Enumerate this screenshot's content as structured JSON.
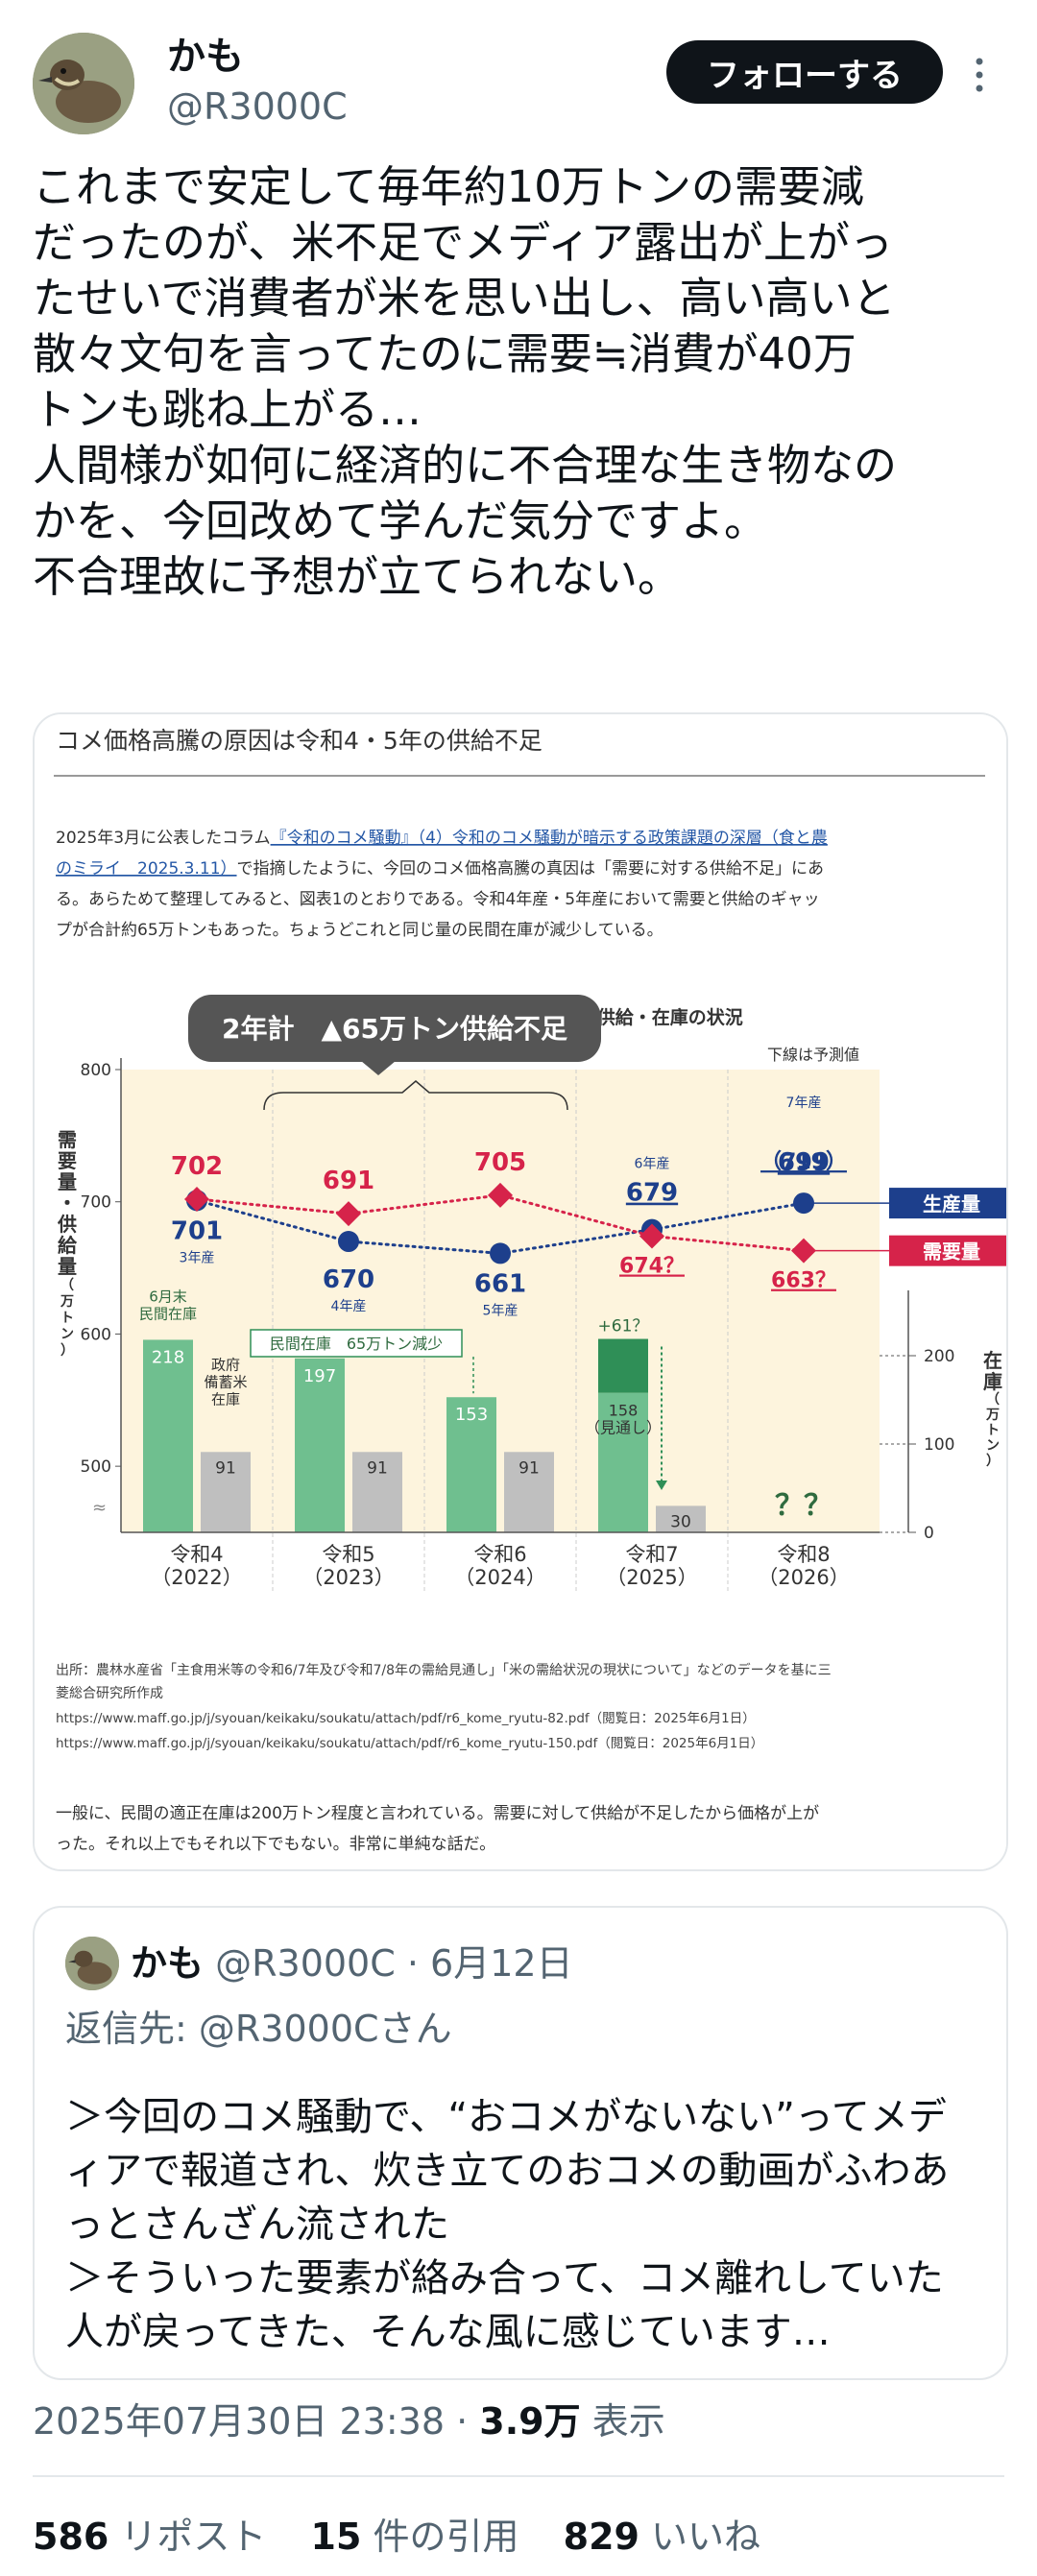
{
  "author": {
    "name": "かも",
    "handle": "@R3000C"
  },
  "follow_label": "フォローする",
  "tweet_text": "これまで安定して毎年約10万トンの需要減\nだったのが、米不足でメディア露出が上がっ\nたせいで消費者が米を思い出し、高い高いと\n散々文句を言ってたのに需要≒消費が40万\nトンも跳ね上がる…\n人間様が如何に経済的に不合理な生き物なの\nかを、今回改めて学んだ気分ですよ。\n不合理故に予想が立てられない。",
  "card": {
    "heading": "コメ価格高騰の原因は令和4・5年の供給不足",
    "intro_lines": [
      [
        "2025年3月に公表したコラム",
        "『令和のコメ騒動』（4）令和のコメ騒動が暗示する政策課題の深層（食と農"
      ],
      [
        "",
        "のミライ　2025.3.11）",
        "で指摘したように、今回のコメ価格高騰の真因は「需要に対する供給不足」にあ"
      ],
      [
        "る。あらためて整理してみると、図表1のとおりである。令和4年産・5年産において需要と供給のギャッ"
      ],
      [
        "プが合計約65万トンもあった。ちょうどこれと同じ量の民間在庫が減少している。"
      ]
    ],
    "source_lines": [
      "出所：農林水産省「主食用米等の令和6/7年及び令和7/8年の需給見通し」「米の需給状況の現状について」などのデータを基に三",
      "菱総合研究所作成",
      "https://www.maff.go.jp/j/syouan/keikaku/soukatu/attach/pdf/r6_kome_ryutu-82.pdf（閲覧日：2025年6月1日）",
      "https://www.maff.go.jp/j/syouan/keikaku/soukatu/attach/pdf/r6_kome_ryutu-150.pdf（閲覧日：2025年6月1日）"
    ],
    "footer_lines": [
      "一般に、民間の適正在庫は200万トン程度と言われている。需要に対して供給が不足したから価格が上が",
      "った。それ以上でもそれ以下でもない。非常に単純な話だ。"
    ]
  },
  "chart_data": {
    "type": "line",
    "title": "図表1　令和4年以降のコメの需要・供給・在庫の状況",
    "categories": [
      "令和4\n（2022）",
      "令和5\n（2023）",
      "令和6\n（2024）",
      "令和7\n（2025）",
      "令和8\n（2026）"
    ],
    "ylabel": "需要量・供給量（万トン）",
    "y2label": "在庫（万トン）",
    "ylim": [
      450,
      800
    ],
    "yticks": [
      "800",
      "700",
      "600",
      "500"
    ],
    "y2lim": [
      0,
      250
    ],
    "y2ticks": [
      "200",
      "100",
      "0"
    ],
    "projection_note": "下線は予測値",
    "callout": "2年計　▲65万トン供給不足",
    "series": [
      {
        "name": "生産量",
        "color": "#1d3f8c",
        "labels": [
          "701",
          "670",
          "661",
          "679",
          "699"
        ],
        "values": [
          701,
          670,
          661,
          679,
          699
        ],
        "sublabels": [
          "3年産",
          "4年産",
          "5年産",
          "6年産",
          "7年産"
        ],
        "extra_label": "（719）"
      },
      {
        "name": "需要量",
        "color": "#d6234a",
        "labels": [
          "702",
          "691",
          "705",
          "674？",
          "663？"
        ],
        "values": [
          702,
          691,
          705,
          674,
          663
        ]
      }
    ],
    "stock_private": {
      "name": "6月末\n民間在庫",
      "color": "#6fbf8f",
      "labels": [
        "218",
        "197",
        "153",
        "158\n（見通し）"
      ],
      "values": [
        218,
        197,
        153,
        158
      ],
      "increase_label": "+61？",
      "increase_value": 61,
      "decrease_label": "民間在庫　65万トン減少"
    },
    "stock_government": {
      "name": "政府\n備蓄米\n在庫",
      "color": "#bfbfbf",
      "labels": [
        "91",
        "91",
        "91",
        "30"
      ],
      "values": [
        91,
        91,
        91,
        30
      ]
    },
    "unknown_label": "？？",
    "grid": false,
    "legend": "right"
  },
  "quote": {
    "name": "かも",
    "handle": "@R3000C",
    "date": "6月12日",
    "reply_prefix": "返信先:",
    "reply_handle": "@R3000C",
    "reply_suffix": "さん",
    "text": "＞今回のコメ騒動で、“おコメがないない”ってメデ\nィアで報道され、炊き立てのおコメの動画がふわあ\nっとさんざん流された\n＞そういった要素が絡み合って、コメ離れしていた\n人が戻ってきた、そんな風に感じています…"
  },
  "timestamp": "2025年07月30日 23:38",
  "views_count": "3.9万",
  "views_label": "表示",
  "stats": {
    "reposts": "586",
    "reposts_label": "リポスト",
    "quotes": "15",
    "quotes_label": "件の引用",
    "likes": "829",
    "likes_label": "いいね"
  }
}
